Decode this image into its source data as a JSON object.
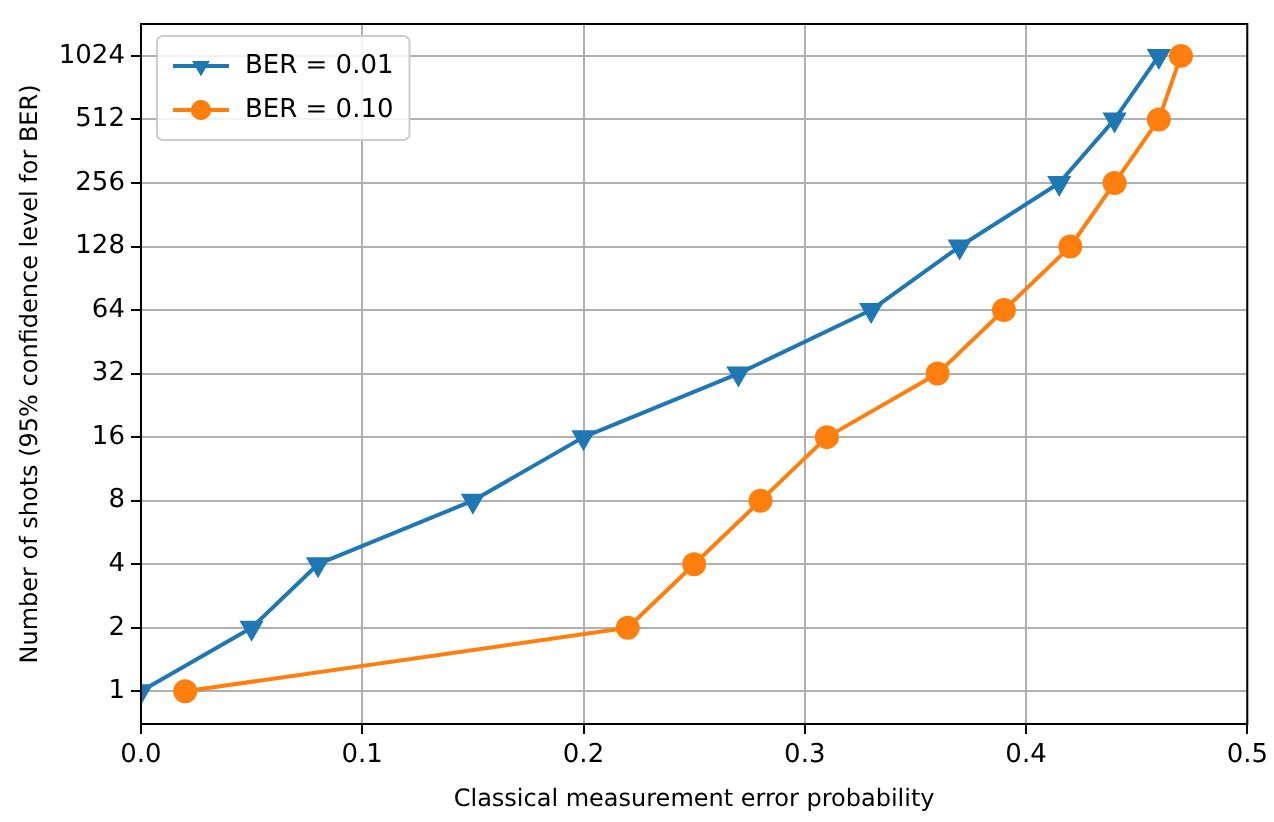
{
  "chart_data": {
    "type": "line",
    "xlabel": "Classical measurement error probability",
    "ylabel": "Number of shots (95% confidence level for BER)",
    "series": [
      {
        "name": "BER = 0.01",
        "color": "#1f77b4",
        "marker": "triangle",
        "x": [
          0.0,
          0.05,
          0.08,
          0.15,
          0.2,
          0.27,
          0.33,
          0.37,
          0.415,
          0.44,
          0.46
        ],
        "values": [
          1,
          2,
          4,
          8,
          16,
          32,
          64,
          128,
          256,
          512,
          1024
        ]
      },
      {
        "name": "BER = 0.10",
        "color": "#ff7f0e",
        "marker": "circle",
        "x": [
          0.02,
          0.22,
          0.25,
          0.28,
          0.31,
          0.36,
          0.39,
          0.42,
          0.44,
          0.46,
          0.47
        ],
        "values": [
          1,
          2,
          4,
          8,
          16,
          32,
          64,
          128,
          256,
          512,
          1024
        ]
      }
    ],
    "log": "y",
    "xlim": [
      0,
      0.5
    ],
    "xticks": [
      {
        "value": 0,
        "label": "0.0"
      },
      0.1,
      0.2,
      0.3,
      0.4,
      {
        "value": 0.5,
        "label": "0.5"
      }
    ],
    "ylim": [
      0.7,
      1450
    ],
    "yticks": [
      1,
      2,
      4,
      8,
      16,
      32,
      64,
      128,
      256,
      512,
      1024
    ],
    "grid": true,
    "legend": "top left",
    "line_style": "solid"
  }
}
